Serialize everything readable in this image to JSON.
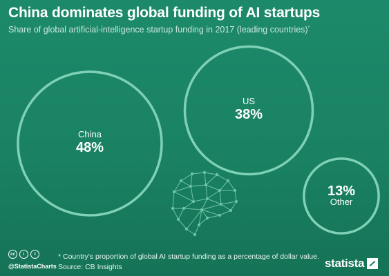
{
  "header": {
    "title": "China dominates global funding of AI startups",
    "subtitle": "Share of global artificial-intelligence startup funding in 2017 (leading countries)",
    "subtitle_mark": "*"
  },
  "chart_data": {
    "type": "bubble",
    "title": "China dominates global funding of AI startups",
    "subtitle": "Share of global artificial-intelligence startup funding in 2017 (leading countries)*",
    "unit": "%",
    "items": [
      {
        "label": "China",
        "value": 48,
        "display": "48%"
      },
      {
        "label": "US",
        "value": 38,
        "display": "38%"
      },
      {
        "label": "Other",
        "value": 13,
        "display": "13%"
      }
    ]
  },
  "footer": {
    "footnote": "* Country's proportion of global AI startup funding as a percentage of dollar value.",
    "source": "Source: CB Insights",
    "handle": "@StatistaCharts",
    "brand": "statista"
  },
  "icons": [
    "cc-icon",
    "by-icon",
    "nd-icon",
    "brain-network-icon",
    "statista-logo-icon"
  ],
  "colors": {
    "background": "#1a8263",
    "circle_stroke": "#7fd1b6",
    "text": "#ffffff"
  }
}
